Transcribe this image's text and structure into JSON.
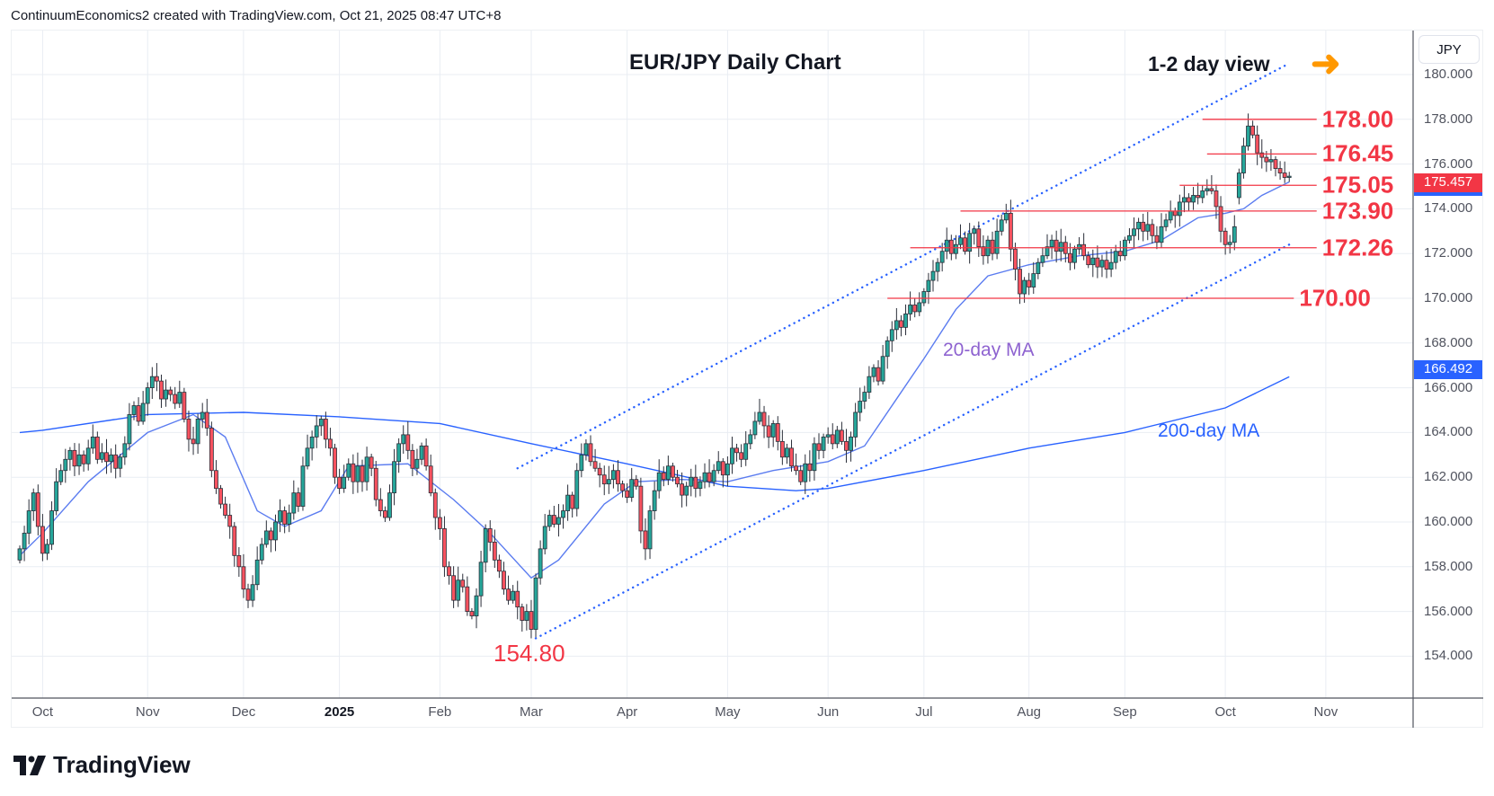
{
  "header": "ContinuumEconomics2 created with TradingView.com, Oct 21, 2025 08:47 UTC+8",
  "brand": "TradingView",
  "chart_data": {
    "type": "candlestick",
    "title": "EUR/JPY Daily Chart",
    "subtitle": "1-2 day view",
    "currency": "JPY",
    "ylim": [
      152.5,
      182
    ],
    "grid": true,
    "y_ticks": [
      "154.000",
      "156.000",
      "158.000",
      "160.000",
      "162.000",
      "164.000",
      "166.000",
      "168.000",
      "170.000",
      "172.000",
      "174.000",
      "176.000",
      "178.000",
      "180.000"
    ],
    "x_ticks": [
      {
        "label": "Oct",
        "idx": 5
      },
      {
        "label": "Nov",
        "idx": 28
      },
      {
        "label": "Dec",
        "idx": 49
      },
      {
        "label": "2025",
        "idx": 70,
        "year": true
      },
      {
        "label": "Feb",
        "idx": 92
      },
      {
        "label": "Mar",
        "idx": 112
      },
      {
        "label": "Apr",
        "idx": 133
      },
      {
        "label": "May",
        "idx": 155
      },
      {
        "label": "Jun",
        "idx": 177
      },
      {
        "label": "Jul",
        "idx": 198
      },
      {
        "label": "Aug",
        "idx": 221
      },
      {
        "label": "Sep",
        "idx": 242
      },
      {
        "label": "Oct",
        "idx": 264
      },
      {
        "label": "Nov",
        "idx": 286
      }
    ],
    "closes": [
      158.8,
      159.5,
      160.5,
      161.3,
      159.8,
      158.6,
      159.0,
      160.5,
      161.8,
      162.3,
      162.8,
      163.2,
      162.5,
      163.0,
      162.6,
      163.3,
      163.8,
      162.8,
      163.1,
      162.7,
      163.0,
      162.4,
      162.9,
      163.5,
      164.8,
      165.2,
      164.5,
      165.3,
      166.0,
      166.5,
      166.3,
      165.5,
      165.9,
      165.7,
      165.3,
      165.8,
      164.6,
      163.7,
      163.5,
      164.6,
      164.9,
      164.2,
      162.3,
      161.5,
      160.8,
      160.3,
      159.8,
      158.5,
      158.0,
      157.0,
      156.5,
      157.2,
      158.3,
      159.0,
      159.6,
      159.2,
      160.0,
      160.5,
      159.9,
      160.4,
      161.3,
      160.7,
      162.5,
      163.3,
      163.8,
      164.3,
      164.6,
      163.7,
      163.3,
      162.0,
      161.5,
      162.0,
      162.6,
      161.8,
      162.5,
      161.8,
      162.9,
      162.4,
      161.0,
      160.5,
      160.2,
      161.3,
      162.7,
      163.5,
      163.9,
      163.2,
      162.4,
      162.8,
      163.4,
      162.5,
      161.3,
      160.2,
      159.7,
      158.0,
      157.6,
      156.5,
      157.4,
      157.1,
      156.0,
      155.8,
      156.7,
      158.2,
      159.7,
      159.1,
      158.3,
      157.8,
      157.0,
      156.5,
      156.9,
      156.2,
      155.6,
      156.0,
      155.2,
      157.5,
      158.8,
      159.8,
      160.3,
      159.9,
      160.2,
      160.5,
      161.2,
      160.6,
      162.3,
      163.0,
      163.5,
      162.7,
      162.4,
      162.1,
      161.7,
      161.9,
      162.3,
      161.7,
      161.4,
      161.1,
      161.9,
      161.6,
      159.6,
      158.8,
      160.5,
      161.4,
      162.2,
      161.9,
      162.5,
      162.0,
      161.7,
      161.2,
      161.6,
      162.0,
      161.5,
      161.8,
      162.2,
      161.8,
      162.3,
      162.7,
      162.1,
      162.6,
      163.3,
      163.1,
      162.8,
      163.5,
      163.9,
      164.5,
      164.9,
      164.3,
      163.8,
      164.4,
      163.6,
      162.9,
      163.3,
      162.5,
      162.3,
      161.8,
      162.6,
      162.3,
      163.5,
      163.2,
      163.8,
      163.9,
      163.5,
      164.1,
      163.6,
      163.2,
      163.8,
      164.9,
      165.4,
      165.8,
      166.5,
      166.9,
      166.3,
      167.4,
      168.1,
      168.6,
      169.0,
      168.7,
      169.3,
      169.7,
      169.4,
      169.8,
      170.3,
      170.8,
      171.2,
      171.6,
      172.1,
      172.6,
      172.0,
      172.4,
      172.7,
      172.1,
      172.9,
      173.1,
      172.3,
      171.9,
      172.6,
      172.0,
      173.0,
      173.5,
      173.8,
      172.2,
      171.3,
      170.2,
      170.8,
      170.5,
      171.1,
      171.6,
      171.9,
      172.3,
      172.6,
      172.1,
      172.5,
      172.0,
      171.6,
      172.2,
      172.4,
      171.9,
      171.5,
      171.8,
      171.4,
      171.7,
      171.3,
      171.6,
      172.1,
      171.9,
      172.6,
      172.8,
      173.1,
      173.4,
      173.0,
      173.3,
      172.8,
      172.5,
      173.2,
      173.5,
      173.9,
      173.7,
      174.3,
      174.5,
      174.3,
      174.6,
      174.5,
      174.8,
      174.9,
      174.8,
      174.1,
      173.0,
      172.4,
      172.5,
      173.2,
      175.6,
      176.8,
      177.7,
      177.3,
      176.5,
      176.3,
      176.1,
      176.2,
      175.8,
      175.6,
      175.4,
      175.457
    ],
    "ma20": {
      "label": "20-day MA",
      "color": "#5b7cf0",
      "points": [
        [
          0,
          158.5
        ],
        [
          5,
          159.5
        ],
        [
          15,
          161.8
        ],
        [
          28,
          164.0
        ],
        [
          38,
          164.8
        ],
        [
          45,
          163.8
        ],
        [
          52,
          160.5
        ],
        [
          58,
          159.8
        ],
        [
          66,
          160.5
        ],
        [
          72,
          162.5
        ],
        [
          85,
          162.6
        ],
        [
          95,
          161.0
        ],
        [
          103,
          159.5
        ],
        [
          112,
          157.5
        ],
        [
          118,
          158.3
        ],
        [
          128,
          160.8
        ],
        [
          135,
          161.8
        ],
        [
          145,
          161.9
        ],
        [
          155,
          161.8
        ],
        [
          165,
          162.3
        ],
        [
          177,
          162.7
        ],
        [
          185,
          163.4
        ],
        [
          192,
          165.5
        ],
        [
          198,
          167.3
        ],
        [
          205,
          169.5
        ],
        [
          212,
          171.0
        ],
        [
          221,
          171.5
        ],
        [
          232,
          171.9
        ],
        [
          242,
          172.1
        ],
        [
          250,
          172.6
        ],
        [
          258,
          173.6
        ],
        [
          264,
          173.8
        ],
        [
          268,
          174.0
        ],
        [
          272,
          174.6
        ],
        [
          278,
          175.2
        ]
      ]
    },
    "ma200": {
      "label": "200-day MA",
      "color": "#2962ff",
      "last": "166.492",
      "points": [
        [
          0,
          164.0
        ],
        [
          5,
          164.1
        ],
        [
          28,
          164.8
        ],
        [
          49,
          164.9
        ],
        [
          70,
          164.7
        ],
        [
          92,
          164.4
        ],
        [
          112,
          163.5
        ],
        [
          133,
          162.6
        ],
        [
          155,
          161.6
        ],
        [
          170,
          161.4
        ],
        [
          177,
          161.5
        ],
        [
          198,
          162.3
        ],
        [
          221,
          163.3
        ],
        [
          242,
          164.0
        ],
        [
          264,
          165.1
        ],
        [
          278,
          166.49
        ]
      ]
    },
    "last_price": "175.457",
    "channel": {
      "upper": [
        [
          109,
          162.4
        ],
        [
          278,
          180.5
        ]
      ],
      "lower": [
        [
          113,
          154.8
        ],
        [
          278,
          172.4
        ]
      ]
    },
    "levels": [
      {
        "price": 178.0,
        "label": "178.00",
        "from": 259,
        "to": 284
      },
      {
        "price": 176.45,
        "label": "176.45",
        "from": 260,
        "to": 284
      },
      {
        "price": 175.05,
        "label": "175.05",
        "from": 254,
        "to": 284
      },
      {
        "price": 173.9,
        "label": "173.90",
        "from": 206,
        "to": 284
      },
      {
        "price": 172.26,
        "label": "172.26",
        "from": 195,
        "to": 284
      },
      {
        "price": 170.0,
        "label": "170.00",
        "from": 190,
        "to": 279
      }
    ],
    "low_annotation": "154.80",
    "colors": {
      "up": "#26a69a",
      "down": "#f7525f",
      "level": "#f23645",
      "arrow": "#ff9800"
    }
  }
}
